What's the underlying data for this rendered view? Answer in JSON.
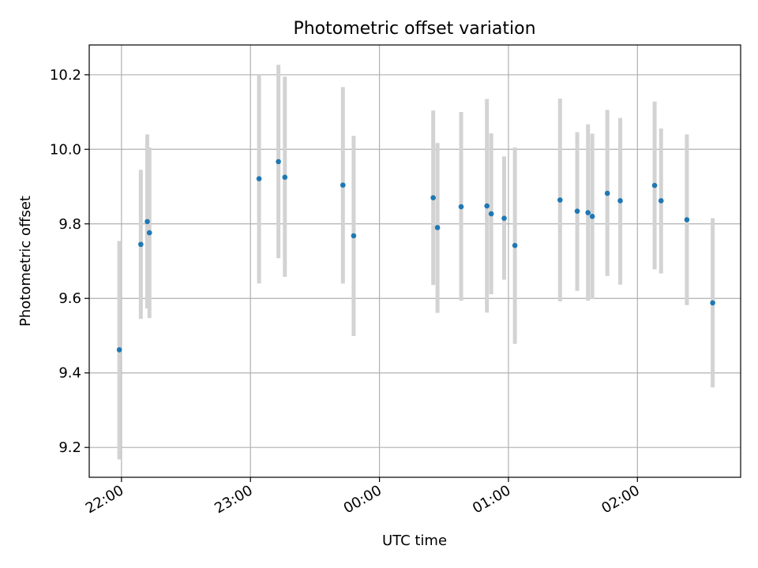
{
  "chart_data": {
    "type": "scatter",
    "title": "Photometric offset variation",
    "xlabel": "UTC time",
    "ylabel": "Photometric offset",
    "x_axis": {
      "type": "time",
      "tick_labels": [
        "22:00",
        "23:00",
        "00:00",
        "01:00",
        "02:00"
      ],
      "ticks_minutes_from_22h": [
        0,
        60,
        120,
        180,
        240
      ],
      "range_minutes_from_22h": [
        -15,
        288
      ]
    },
    "ylim": [
      9.12,
      10.28
    ],
    "y_ticks": [
      9.2,
      9.4,
      9.6,
      9.8,
      10.0,
      10.2
    ],
    "y_tick_labels": [
      "9.2",
      "9.4",
      "9.6",
      "9.8",
      "10.0",
      "10.2"
    ],
    "grid": true,
    "point_color": "#1f77b4",
    "errorbar_color": "#d3d3d3",
    "series": [
      {
        "points": [
          {
            "t": "21:59",
            "y": 9.462,
            "lo": 9.168,
            "hi": 9.754
          },
          {
            "t": "22:09",
            "y": 9.745,
            "lo": 9.545,
            "hi": 9.945
          },
          {
            "t": "22:12",
            "y": 9.806,
            "lo": 9.573,
            "hi": 10.04
          },
          {
            "t": "22:13",
            "y": 9.776,
            "lo": 9.547,
            "hi": 10.005
          },
          {
            "t": "23:04",
            "y": 9.921,
            "lo": 9.64,
            "hi": 10.2
          },
          {
            "t": "23:13",
            "y": 9.967,
            "lo": 9.708,
            "hi": 10.227
          },
          {
            "t": "23:16",
            "y": 9.925,
            "lo": 9.658,
            "hi": 10.195
          },
          {
            "t": "23:43",
            "y": 9.904,
            "lo": 9.64,
            "hi": 10.167
          },
          {
            "t": "23:48",
            "y": 9.768,
            "lo": 9.499,
            "hi": 10.036
          },
          {
            "t": "00:25",
            "y": 9.87,
            "lo": 9.636,
            "hi": 10.104
          },
          {
            "t": "00:27",
            "y": 9.79,
            "lo": 9.561,
            "hi": 10.017
          },
          {
            "t": "00:38",
            "y": 9.846,
            "lo": 9.594,
            "hi": 10.1
          },
          {
            "t": "00:50",
            "y": 9.848,
            "lo": 9.562,
            "hi": 10.135
          },
          {
            "t": "00:52",
            "y": 9.827,
            "lo": 9.611,
            "hi": 10.043
          },
          {
            "t": "00:58",
            "y": 9.815,
            "lo": 9.65,
            "hi": 9.981
          },
          {
            "t": "01:03",
            "y": 9.742,
            "lo": 9.478,
            "hi": 10.005
          },
          {
            "t": "01:24",
            "y": 9.864,
            "lo": 9.592,
            "hi": 10.136
          },
          {
            "t": "01:32",
            "y": 9.834,
            "lo": 9.62,
            "hi": 10.046
          },
          {
            "t": "01:37",
            "y": 9.83,
            "lo": 9.594,
            "hi": 10.067
          },
          {
            "t": "01:39",
            "y": 9.82,
            "lo": 9.598,
            "hi": 10.042
          },
          {
            "t": "01:46",
            "y": 9.882,
            "lo": 9.66,
            "hi": 10.106
          },
          {
            "t": "01:52",
            "y": 9.862,
            "lo": 9.637,
            "hi": 10.084
          },
          {
            "t": "02:08",
            "y": 9.903,
            "lo": 9.678,
            "hi": 10.128
          },
          {
            "t": "02:11",
            "y": 9.862,
            "lo": 9.667,
            "hi": 10.056
          },
          {
            "t": "02:23",
            "y": 9.811,
            "lo": 9.582,
            "hi": 10.04
          },
          {
            "t": "02:35",
            "y": 9.588,
            "lo": 9.361,
            "hi": 9.815
          }
        ]
      }
    ]
  }
}
